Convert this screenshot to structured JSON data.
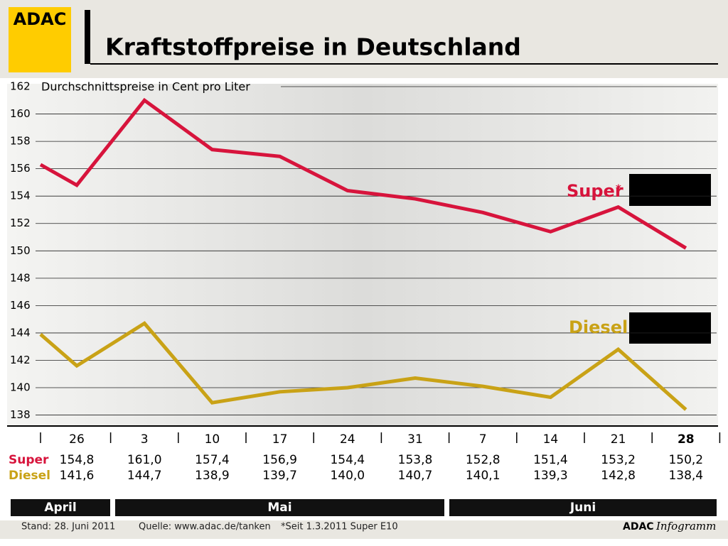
{
  "chart_data": {
    "type": "line",
    "brand": "ADAC",
    "title": "Kraftstoffpreise in Deutschland",
    "y_label": "Durchschnittspreise in Cent pro Liter",
    "categories": [
      null,
      "26",
      "3",
      "10",
      "17",
      "24",
      "31",
      "7",
      "14",
      "21",
      "28"
    ],
    "series": [
      {
        "name": "Super",
        "color": "#d7143c",
        "values": [
          156.3,
          154.8,
          161.0,
          157.4,
          156.9,
          154.4,
          153.8,
          152.8,
          151.4,
          153.2,
          150.2
        ],
        "value_labels": [
          null,
          "154,8",
          "161,0",
          "157,4",
          "156,9",
          "154,4",
          "153,8",
          "152,8",
          "151,4",
          "153,2",
          "150,2"
        ]
      },
      {
        "name": "Diesel",
        "color": "#c9a216",
        "values": [
          143.9,
          141.6,
          144.7,
          138.9,
          139.7,
          140.0,
          140.7,
          140.1,
          139.3,
          142.8,
          138.4
        ],
        "value_labels": [
          null,
          "141,6",
          "144,7",
          "138,9",
          "139,7",
          "140,0",
          "140,7",
          "140,1",
          "139,3",
          "142,8",
          "138,4"
        ]
      }
    ],
    "footnote_marker": "*",
    "ylim": [
      137.2,
      162
    ],
    "yticks": [
      138,
      140,
      142,
      144,
      146,
      148,
      150,
      152,
      154,
      156,
      158,
      160,
      162
    ],
    "grid": true,
    "months": [
      "April",
      "Mai",
      "Juni"
    ],
    "footer": {
      "date": "Stand:  28. Juni 2011",
      "source": "Quelle: www.adac.de/tanken",
      "note": "*Seit 1.3.2011 Super E10",
      "brand": "ADAC",
      "product": "Infogramm"
    }
  }
}
